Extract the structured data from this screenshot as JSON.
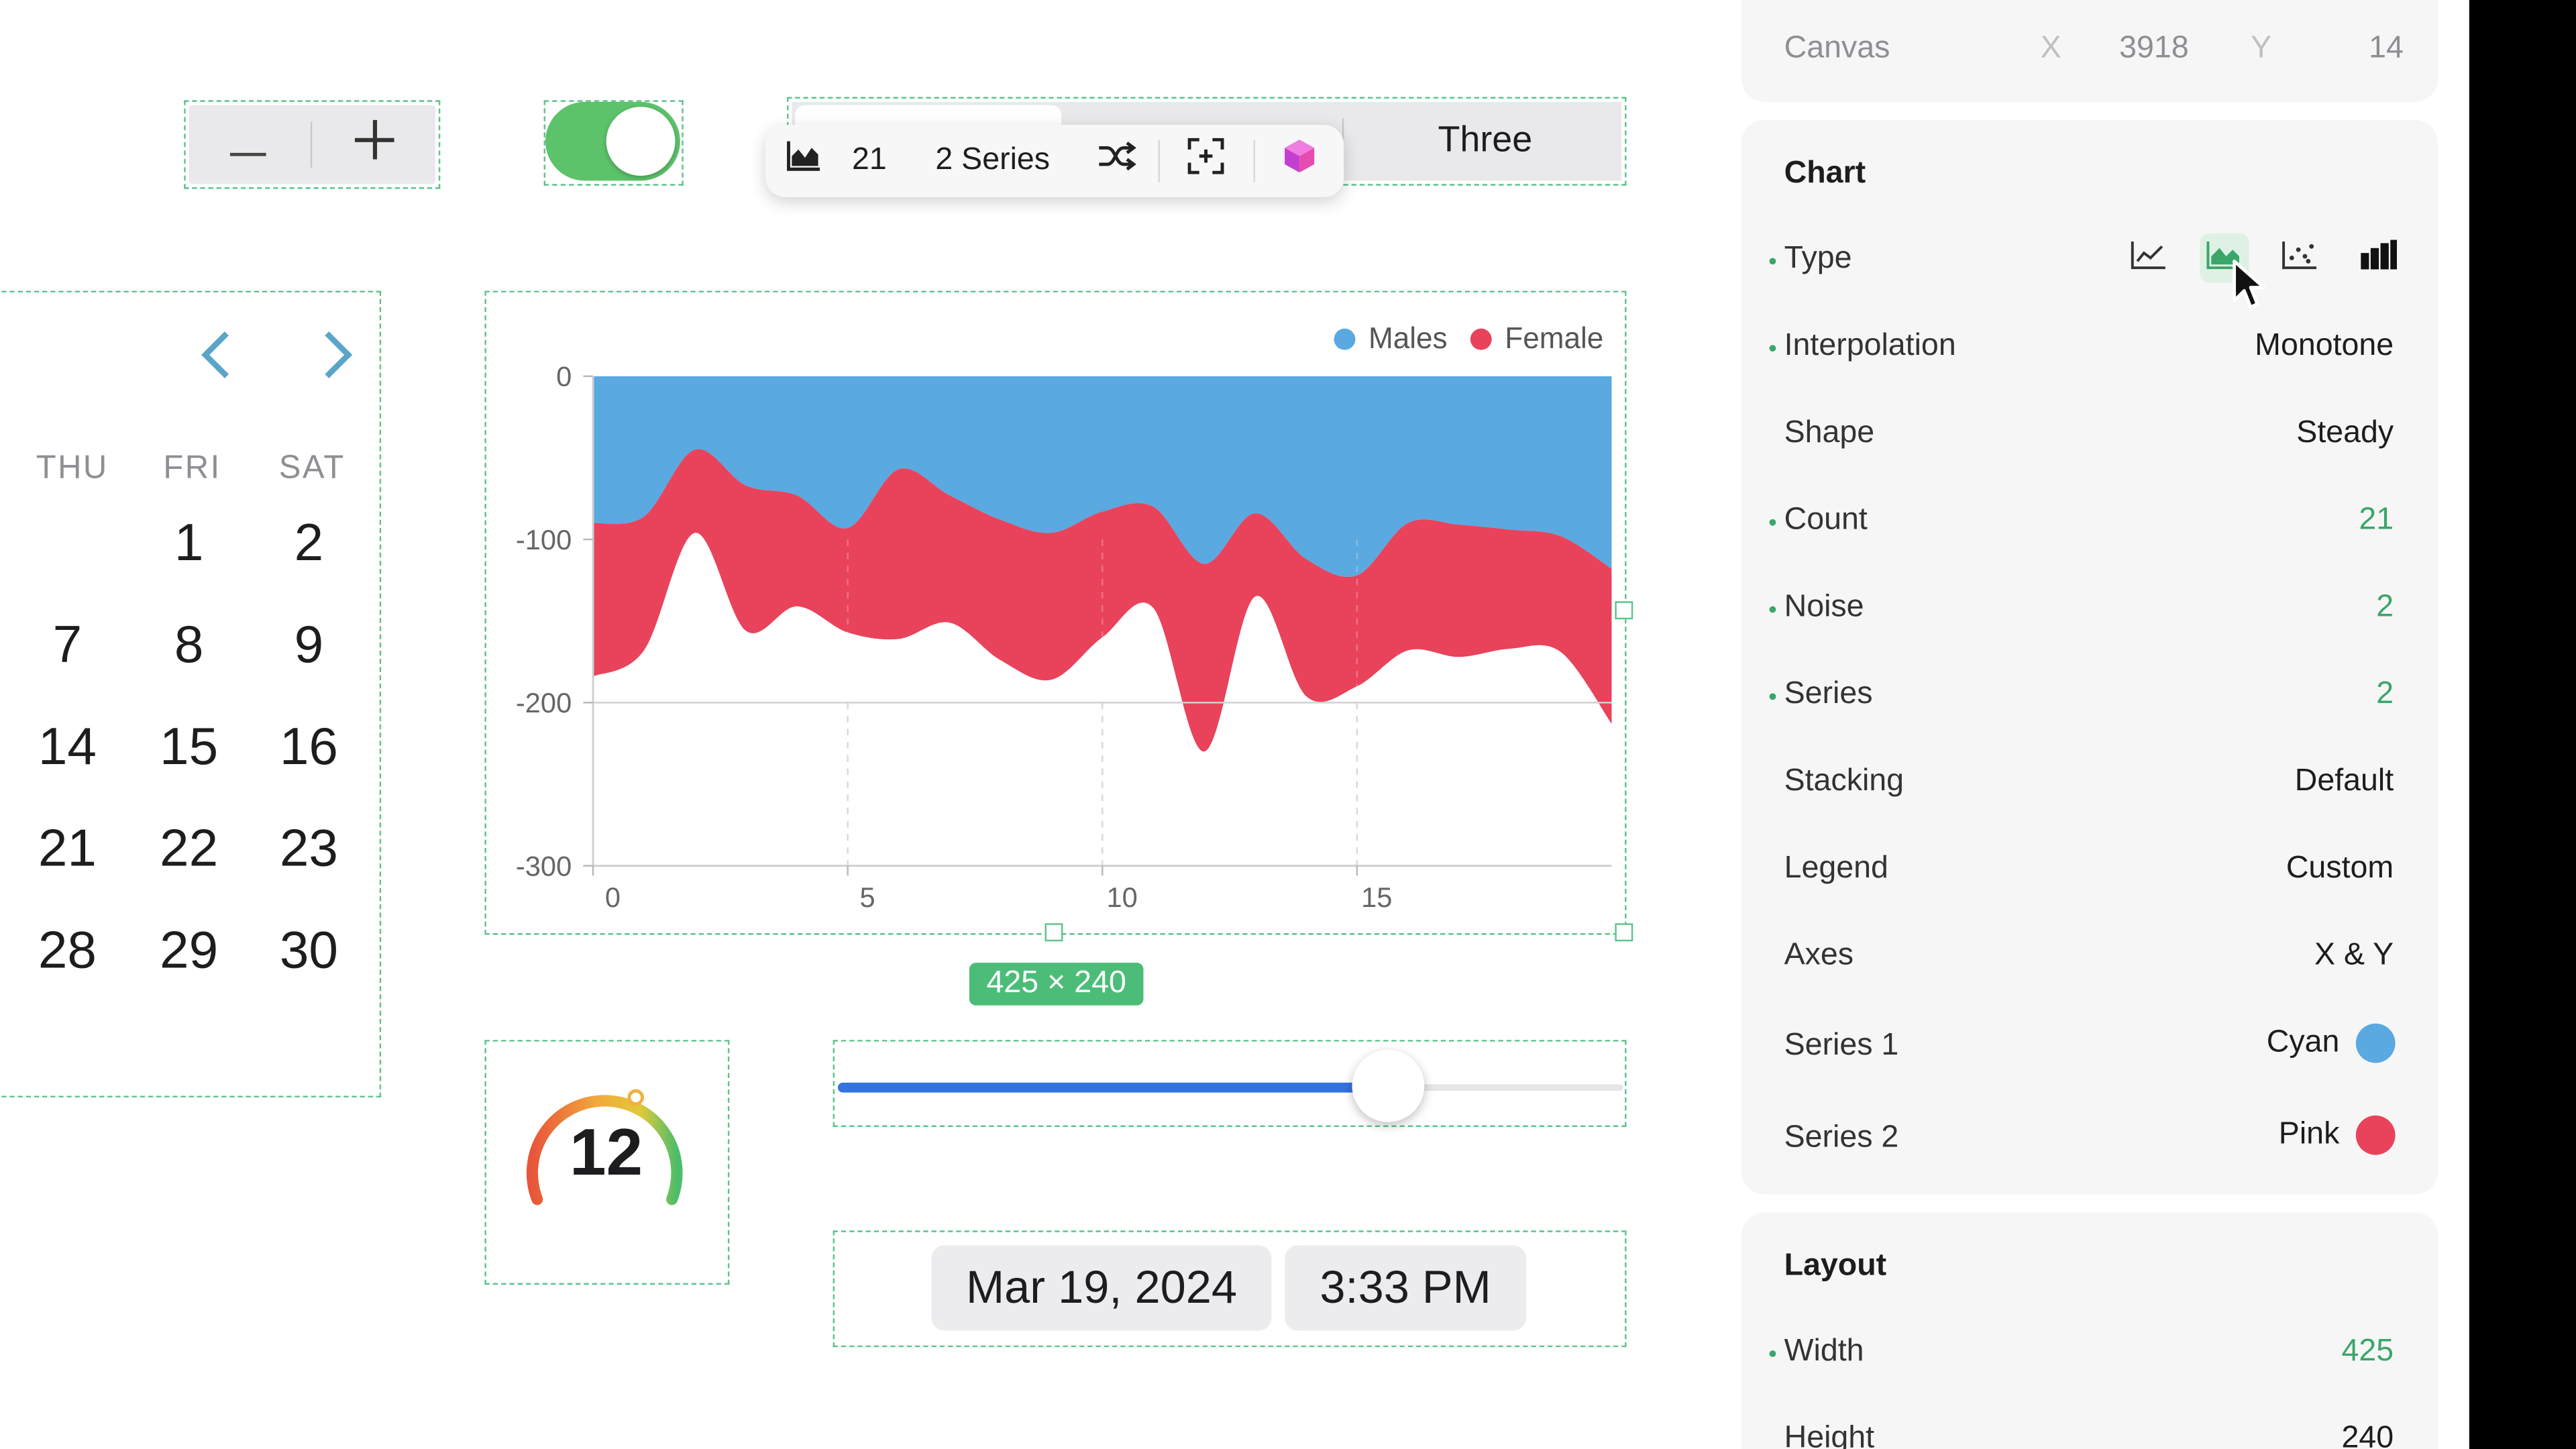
{
  "toolbar": {
    "count": "21",
    "series": "2 Series"
  },
  "segmented": {
    "visible_label": "Three"
  },
  "calendar": {
    "weekdays": [
      "THU",
      "FRI",
      "SAT"
    ],
    "rows": [
      [
        "",
        "1",
        "2"
      ],
      [
        "7",
        "8",
        "9"
      ],
      [
        "14",
        "15",
        "16"
      ],
      [
        "21",
        "22",
        "23"
      ],
      [
        "28",
        "29",
        "30"
      ]
    ]
  },
  "chart_data": {
    "type": "area",
    "x_ticks": [
      "0",
      "5",
      "10",
      "15"
    ],
    "y_ticks": [
      "0",
      "-100",
      "-200",
      "-300"
    ],
    "xlim": [
      0,
      20
    ],
    "ylim": [
      -300,
      0
    ],
    "grid": "vertical dashed at x ticks, horizontal at y=-200",
    "legend_position": "top-right",
    "x": [
      0,
      1,
      2,
      3,
      4,
      5,
      6,
      7,
      8,
      9,
      10,
      11,
      12,
      13,
      14,
      15,
      16,
      17,
      18,
      19,
      20
    ],
    "series": [
      {
        "name": "Males",
        "color": "#5aa9e0",
        "values": [
          -90,
          -86,
          -45,
          -67,
          -73,
          -93,
          -57,
          -73,
          -88,
          -96,
          -83,
          -80,
          -115,
          -84,
          -112,
          -122,
          -90,
          -91,
          -94,
          -98,
          -118
        ]
      },
      {
        "name": "Female",
        "color": "#e8435b",
        "values": [
          -184,
          -168,
          -96,
          -156,
          -141,
          -157,
          -161,
          -151,
          -174,
          -186,
          -160,
          -142,
          -230,
          -135,
          -196,
          -190,
          -168,
          -172,
          -167,
          -169,
          -213
        ]
      }
    ]
  },
  "size_badge": "425 × 240",
  "gauge": {
    "value": "12"
  },
  "slider": {
    "fraction": 0.7
  },
  "date": "Mar 19, 2024",
  "time": "3:33 PM",
  "inspector": {
    "canvas": {
      "label": "Canvas",
      "x_label": "X",
      "x": "3918",
      "y_label": "Y",
      "y": "14"
    },
    "chart_title": "Chart",
    "rows": {
      "type": "Type",
      "interpolation": {
        "label": "Interpolation",
        "value": "Monotone"
      },
      "shape": {
        "label": "Shape",
        "value": "Steady"
      },
      "count": {
        "label": "Count",
        "value": "21"
      },
      "noise": {
        "label": "Noise",
        "value": "2"
      },
      "series": {
        "label": "Series",
        "value": "2"
      },
      "stacking": {
        "label": "Stacking",
        "value": "Default"
      },
      "legend": {
        "label": "Legend",
        "value": "Custom"
      },
      "axes": {
        "label": "Axes",
        "value": "X & Y"
      },
      "series1": {
        "label": "Series 1",
        "value": "Cyan",
        "color": "#5aa9e0"
      },
      "series2": {
        "label": "Series 2",
        "value": "Pink",
        "color": "#e8435b"
      }
    },
    "layout_title": "Layout",
    "width": {
      "label": "Width",
      "value": "425"
    },
    "height": {
      "label": "Height",
      "value": "240"
    }
  },
  "icons": [
    "minus-icon",
    "plus-icon",
    "area-chart-icon",
    "shuffle-icon",
    "focus-icon",
    "cube-icon",
    "chevron-left-icon",
    "chevron-right-icon",
    "line-chart-icon",
    "scatter-chart-icon",
    "bar-chart-icon",
    "cursor-icon"
  ]
}
